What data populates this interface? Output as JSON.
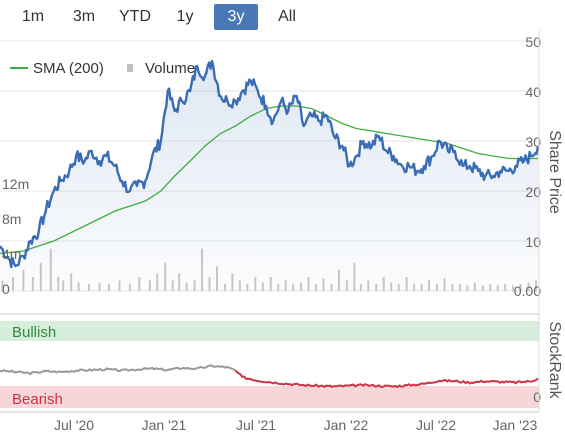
{
  "range_selector": {
    "buttons": [
      "1m",
      "3m",
      "YTD",
      "1y",
      "3y",
      "All"
    ],
    "active": "3y"
  },
  "legend": {
    "sma_label": "SMA (200)",
    "volume_label": "Volume"
  },
  "colors": {
    "price": "#3a6db3",
    "sma": "#3fae3f",
    "volume": "#c8c8c8",
    "bullish_band": "#d8eedd",
    "bearish_band": "#f6d6d8",
    "bullish_text": "#2e8b3e",
    "bearish_text": "#cc3344",
    "stockrank_gray": "#999999",
    "stockrank_red": "#cc3344",
    "active_button": "#4a78b5"
  },
  "chart_data": {
    "type": "line",
    "price_axis": {
      "title": "Share Price",
      "ticks": [
        "50",
        "40",
        "30",
        "20",
        "10",
        "0.00"
      ],
      "ylim": [
        0,
        50
      ]
    },
    "volume_axis": {
      "ticks": [
        "12m",
        "8m",
        "4m",
        "0"
      ],
      "ylim": [
        0,
        20
      ]
    },
    "x_axis": {
      "ticks": [
        "Jul '20",
        "Jan '21",
        "Jul '21",
        "Jan '22",
        "Jul '22",
        "Jan '23"
      ],
      "range": [
        "2020-03-15",
        "2023-03-01"
      ]
    },
    "price_series": [
      [
        "2020-03-15",
        9
      ],
      [
        "2020-04-01",
        6.5
      ],
      [
        "2020-04-15",
        5
      ],
      [
        "2020-05-01",
        7
      ],
      [
        "2020-05-15",
        10
      ],
      [
        "2020-06-01",
        12
      ],
      [
        "2020-06-15",
        16
      ],
      [
        "2020-07-01",
        20
      ],
      [
        "2020-07-15",
        22
      ],
      [
        "2020-08-01",
        24
      ],
      [
        "2020-08-15",
        27
      ],
      [
        "2020-09-01",
        26
      ],
      [
        "2020-09-15",
        28
      ],
      [
        "2020-10-01",
        26
      ],
      [
        "2020-10-15",
        27
      ],
      [
        "2020-11-01",
        25
      ],
      [
        "2020-11-15",
        22
      ],
      [
        "2020-12-01",
        20
      ],
      [
        "2020-12-15",
        21
      ],
      [
        "2021-01-01",
        22
      ],
      [
        "2021-01-15",
        27
      ],
      [
        "2021-02-01",
        30
      ],
      [
        "2021-02-15",
        40
      ],
      [
        "2021-03-01",
        36
      ],
      [
        "2021-03-15",
        38
      ],
      [
        "2021-04-01",
        40
      ],
      [
        "2021-04-15",
        45
      ],
      [
        "2021-05-01",
        43
      ],
      [
        "2021-05-15",
        46
      ],
      [
        "2021-06-01",
        39
      ],
      [
        "2021-06-15",
        38
      ],
      [
        "2021-07-01",
        38
      ],
      [
        "2021-07-15",
        40
      ],
      [
        "2021-08-01",
        42
      ],
      [
        "2021-08-15",
        40
      ],
      [
        "2021-09-01",
        37
      ],
      [
        "2021-09-15",
        34
      ],
      [
        "2021-10-01",
        38
      ],
      [
        "2021-10-15",
        36
      ],
      [
        "2021-11-01",
        39
      ],
      [
        "2021-11-15",
        33
      ],
      [
        "2021-12-01",
        35
      ],
      [
        "2021-12-15",
        34
      ],
      [
        "2022-01-01",
        35
      ],
      [
        "2022-01-15",
        31
      ],
      [
        "2022-02-01",
        29
      ],
      [
        "2022-02-15",
        25
      ],
      [
        "2022-03-01",
        27
      ],
      [
        "2022-03-15",
        30
      ],
      [
        "2022-04-01",
        29
      ],
      [
        "2022-04-15",
        31
      ],
      [
        "2022-05-01",
        28
      ],
      [
        "2022-05-15",
        27
      ],
      [
        "2022-06-01",
        25
      ],
      [
        "2022-06-15",
        25
      ],
      [
        "2022-07-01",
        24
      ],
      [
        "2022-07-15",
        25
      ],
      [
        "2022-08-01",
        27
      ],
      [
        "2022-08-15",
        30
      ],
      [
        "2022-09-01",
        28
      ],
      [
        "2022-09-15",
        28
      ],
      [
        "2022-10-01",
        25
      ],
      [
        "2022-10-15",
        25
      ],
      [
        "2022-11-01",
        24
      ],
      [
        "2022-11-15",
        23
      ],
      [
        "2022-12-01",
        23
      ],
      [
        "2022-12-15",
        24
      ],
      [
        "2023-01-01",
        24
      ],
      [
        "2023-01-15",
        25
      ],
      [
        "2023-02-01",
        26
      ],
      [
        "2023-02-15",
        27
      ],
      [
        "2023-03-01",
        29
      ]
    ],
    "sma_series": [
      [
        "2020-03-15",
        7.5
      ],
      [
        "2020-05-01",
        8
      ],
      [
        "2020-07-01",
        10
      ],
      [
        "2020-09-01",
        13
      ],
      [
        "2020-11-01",
        16
      ],
      [
        "2021-01-01",
        18
      ],
      [
        "2021-02-01",
        20
      ],
      [
        "2021-03-01",
        23
      ],
      [
        "2021-04-01",
        26
      ],
      [
        "2021-05-01",
        29
      ],
      [
        "2021-06-01",
        31.5
      ],
      [
        "2021-07-01",
        33
      ],
      [
        "2021-08-01",
        35
      ],
      [
        "2021-09-01",
        36.5
      ],
      [
        "2021-10-01",
        37
      ],
      [
        "2021-11-01",
        37
      ],
      [
        "2021-12-01",
        36.5
      ],
      [
        "2022-01-01",
        35
      ],
      [
        "2022-02-01",
        33.5
      ],
      [
        "2022-03-01",
        32.5
      ],
      [
        "2022-04-01",
        32
      ],
      [
        "2022-05-01",
        31.5
      ],
      [
        "2022-06-01",
        31
      ],
      [
        "2022-07-01",
        30.5
      ],
      [
        "2022-08-01",
        30
      ],
      [
        "2022-09-01",
        29.5
      ],
      [
        "2022-10-01",
        28.5
      ],
      [
        "2022-11-01",
        27.5
      ],
      [
        "2022-12-01",
        27
      ],
      [
        "2023-01-01",
        26.5
      ],
      [
        "2023-03-01",
        26.5
      ]
    ],
    "volume_series": [
      [
        "2020-03-20",
        1.5
      ],
      [
        "2020-04-10",
        2
      ],
      [
        "2020-05-01",
        3
      ],
      [
        "2020-05-20",
        2
      ],
      [
        "2020-06-05",
        4
      ],
      [
        "2020-06-25",
        6
      ],
      [
        "2020-07-10",
        2
      ],
      [
        "2020-07-20",
        1.5
      ],
      [
        "2020-08-05",
        2.5
      ],
      [
        "2020-08-20",
        1.2
      ],
      [
        "2020-09-10",
        1
      ],
      [
        "2020-10-01",
        1.2
      ],
      [
        "2020-10-20",
        1
      ],
      [
        "2020-11-10",
        1.5
      ],
      [
        "2020-12-01",
        1
      ],
      [
        "2020-12-20",
        2
      ],
      [
        "2021-01-10",
        1.5
      ],
      [
        "2021-01-25",
        2.5
      ],
      [
        "2021-02-10",
        4
      ],
      [
        "2021-02-25",
        1.5
      ],
      [
        "2021-03-10",
        2.5
      ],
      [
        "2021-03-25",
        1.2
      ],
      [
        "2021-04-10",
        1.5
      ],
      [
        "2021-04-25",
        6
      ],
      [
        "2021-05-10",
        2
      ],
      [
        "2021-05-25",
        3.5
      ],
      [
        "2021-06-10",
        1
      ],
      [
        "2021-06-25",
        2.5
      ],
      [
        "2021-07-10",
        1.5
      ],
      [
        "2021-07-25",
        1
      ],
      [
        "2021-08-10",
        2
      ],
      [
        "2021-08-25",
        1.2
      ],
      [
        "2021-09-10",
        2
      ],
      [
        "2021-09-25",
        1
      ],
      [
        "2021-10-10",
        1.5
      ],
      [
        "2021-10-25",
        1
      ],
      [
        "2021-11-10",
        1.2
      ],
      [
        "2021-11-25",
        2
      ],
      [
        "2021-12-10",
        1
      ],
      [
        "2021-12-25",
        1.8
      ],
      [
        "2022-01-10",
        1
      ],
      [
        "2022-01-25",
        3
      ],
      [
        "2022-02-10",
        1.5
      ],
      [
        "2022-02-25",
        4
      ],
      [
        "2022-03-10",
        1
      ],
      [
        "2022-03-25",
        1.5
      ],
      [
        "2022-04-10",
        1
      ],
      [
        "2022-04-25",
        2
      ],
      [
        "2022-05-10",
        1.2
      ],
      [
        "2022-05-25",
        1
      ],
      [
        "2022-06-10",
        2
      ],
      [
        "2022-06-25",
        1
      ],
      [
        "2022-07-10",
        1
      ],
      [
        "2022-07-25",
        1.5
      ],
      [
        "2022-08-10",
        1
      ],
      [
        "2022-08-25",
        1.8
      ],
      [
        "2022-09-10",
        1
      ],
      [
        "2022-09-25",
        1
      ],
      [
        "2022-10-10",
        0.8
      ],
      [
        "2022-10-25",
        1.2
      ],
      [
        "2022-11-10",
        0.8
      ],
      [
        "2022-11-25",
        1
      ],
      [
        "2022-12-10",
        0.8
      ],
      [
        "2022-12-25",
        1
      ],
      [
        "2023-01-10",
        0.8
      ],
      [
        "2023-01-25",
        1
      ],
      [
        "2023-02-10",
        1.2
      ],
      [
        "2023-02-25",
        1.5
      ]
    ],
    "stockrank": {
      "title": "StockRank",
      "bullish_label": "Bullish",
      "bearish_label": "Bearish",
      "tick_zero": "0",
      "ylim": [
        0,
        100
      ],
      "series": [
        [
          "2020-03-15",
          40
        ],
        [
          "2020-04-15",
          38
        ],
        [
          "2020-05-15",
          36
        ],
        [
          "2020-06-15",
          39
        ],
        [
          "2020-07-15",
          38
        ],
        [
          "2020-08-15",
          40
        ],
        [
          "2020-09-15",
          41
        ],
        [
          "2020-10-15",
          42
        ],
        [
          "2020-11-15",
          40
        ],
        [
          "2020-12-15",
          42
        ],
        [
          "2021-01-15",
          43
        ],
        [
          "2021-02-15",
          41
        ],
        [
          "2021-03-15",
          44
        ],
        [
          "2021-04-15",
          43
        ],
        [
          "2021-05-15",
          47
        ],
        [
          "2021-06-15",
          45
        ],
        [
          "2021-07-01",
          40
        ],
        [
          "2021-07-15",
          30
        ],
        [
          "2021-08-15",
          25
        ],
        [
          "2021-09-15",
          22
        ],
        [
          "2021-10-15",
          20
        ],
        [
          "2021-11-15",
          18
        ],
        [
          "2021-12-15",
          17
        ],
        [
          "2022-01-15",
          16
        ],
        [
          "2022-02-15",
          17
        ],
        [
          "2022-03-15",
          18
        ],
        [
          "2022-04-15",
          17
        ],
        [
          "2022-05-15",
          16
        ],
        [
          "2022-06-15",
          18
        ],
        [
          "2022-07-15",
          20
        ],
        [
          "2022-08-15",
          25
        ],
        [
          "2022-09-15",
          24
        ],
        [
          "2022-10-15",
          22
        ],
        [
          "2022-11-15",
          24
        ],
        [
          "2022-12-15",
          23
        ],
        [
          "2023-01-15",
          22
        ],
        [
          "2023-02-15",
          24
        ],
        [
          "2023-03-01",
          28
        ]
      ],
      "neutral_until": "2021-07-01"
    }
  }
}
